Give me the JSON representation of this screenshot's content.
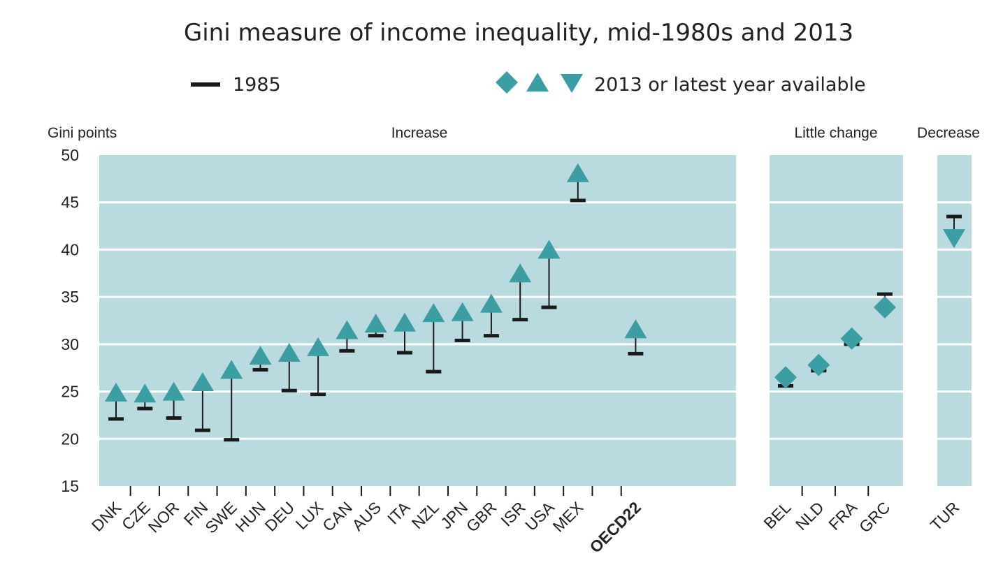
{
  "chart_data": {
    "type": "scatter",
    "title": "Gini measure of income inequality, mid-1980s and 2013",
    "ylabel": "Gini points",
    "ylim": [
      15,
      50
    ],
    "yticks": [
      15,
      20,
      25,
      30,
      35,
      40,
      45,
      50
    ],
    "grid": true,
    "legend": {
      "position": "top",
      "items": [
        {
          "label": "1985",
          "marker": "bar"
        },
        {
          "label": "2013 or latest year available",
          "marker": "diamond-triangle-up-triangle-down"
        }
      ]
    },
    "colors": {
      "marker": "#3a9ea2",
      "bar": "#1a1a1a",
      "panel": "#b9dbdf",
      "grid": "#ffffff"
    },
    "series": [
      {
        "name": "1985",
        "key": "v1985"
      },
      {
        "name": "2013 or latest year available",
        "key": "v2013"
      }
    ],
    "groups": [
      {
        "label": "Increase",
        "items": [
          {
            "name": "DNK",
            "v1985": 22.1,
            "v2013": 24.9,
            "marker": "triangle-up"
          },
          {
            "name": "CZE",
            "v1985": 23.2,
            "v2013": 24.8,
            "marker": "triangle-up"
          },
          {
            "name": "NOR",
            "v1985": 22.2,
            "v2013": 25.0,
            "marker": "triangle-up"
          },
          {
            "name": "FIN",
            "v1985": 20.9,
            "v2013": 26.0,
            "marker": "triangle-up"
          },
          {
            "name": "SWE",
            "v1985": 19.9,
            "v2013": 27.3,
            "marker": "triangle-up"
          },
          {
            "name": "HUN",
            "v1985": 27.3,
            "v2013": 28.8,
            "marker": "triangle-up"
          },
          {
            "name": "DEU",
            "v1985": 25.1,
            "v2013": 29.1,
            "marker": "triangle-up"
          },
          {
            "name": "LUX",
            "v1985": 24.7,
            "v2013": 29.7,
            "marker": "triangle-up"
          },
          {
            "name": "CAN",
            "v1985": 29.3,
            "v2013": 31.5,
            "marker": "triangle-up"
          },
          {
            "name": "AUS",
            "v1985": 30.9,
            "v2013": 32.2,
            "marker": "triangle-up"
          },
          {
            "name": "ITA",
            "v1985": 29.1,
            "v2013": 32.3,
            "marker": "triangle-up"
          },
          {
            "name": "NZL",
            "v1985": 27.1,
            "v2013": 33.3,
            "marker": "triangle-up"
          },
          {
            "name": "JPN",
            "v1985": 30.4,
            "v2013": 33.4,
            "marker": "triangle-up"
          },
          {
            "name": "GBR",
            "v1985": 30.9,
            "v2013": 34.3,
            "marker": "triangle-up"
          },
          {
            "name": "ISR",
            "v1985": 32.6,
            "v2013": 37.5,
            "marker": "triangle-up"
          },
          {
            "name": "USA",
            "v1985": 33.9,
            "v2013": 40.0,
            "marker": "triangle-up"
          },
          {
            "name": "MEX",
            "v1985": 45.2,
            "v2013": 48.1,
            "marker": "triangle-up"
          },
          {
            "name": "",
            "v1985": null,
            "v2013": null,
            "marker": "none"
          },
          {
            "name": "OECD22",
            "v1985": 29.0,
            "v2013": 31.6,
            "marker": "triangle-up",
            "bold": true
          }
        ]
      },
      {
        "label": "Little change",
        "items": [
          {
            "name": "BEL",
            "v1985": 25.6,
            "v2013": 26.5,
            "marker": "diamond"
          },
          {
            "name": "NLD",
            "v1985": 27.2,
            "v2013": 27.8,
            "marker": "diamond"
          },
          {
            "name": "FRA",
            "v1985": 30.0,
            "v2013": 30.6,
            "marker": "diamond"
          },
          {
            "name": "GRC",
            "v1985": 35.3,
            "v2013": 33.9,
            "marker": "diamond"
          }
        ]
      },
      {
        "label": "Decrease",
        "items": [
          {
            "name": "TUR",
            "v1985": 43.5,
            "v2013": 41.2,
            "marker": "triangle-down"
          }
        ]
      }
    ]
  }
}
